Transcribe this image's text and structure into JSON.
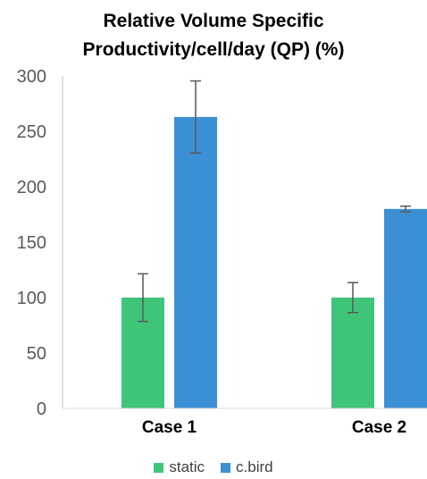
{
  "chart_data": {
    "type": "bar",
    "title_lines": [
      "Relative Volume Specific",
      "Productivity/cell/day (QP) (%)"
    ],
    "categories": [
      "Case 1",
      "Case 2"
    ],
    "series": [
      {
        "name": "static",
        "color": "#3fc57a",
        "values": [
          100,
          100
        ],
        "error": [
          21.5,
          13.5
        ]
      },
      {
        "name": "c.bird",
        "color": "#3b8fd4",
        "values": [
          263,
          180
        ],
        "error": [
          32.5,
          2.5
        ]
      }
    ],
    "ylim": [
      0,
      300
    ],
    "yticks": [
      0,
      50,
      100,
      150,
      200,
      250,
      300
    ],
    "grid": false,
    "legend_position": "bottom"
  }
}
